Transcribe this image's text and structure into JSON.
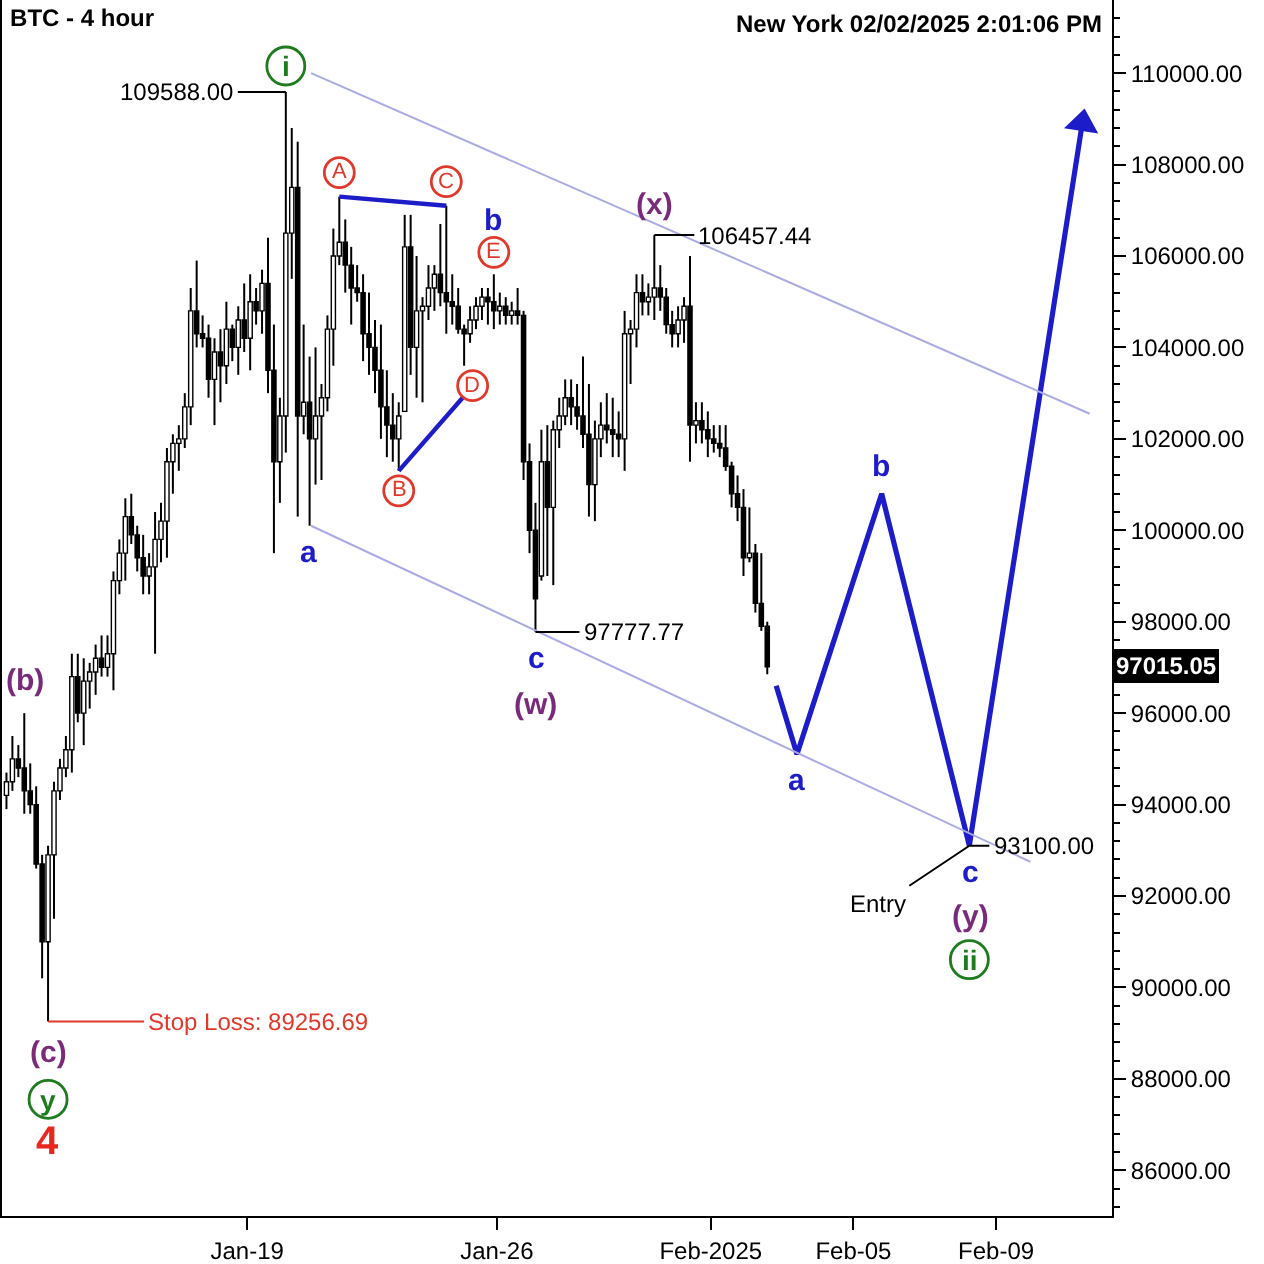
{
  "chart_data": {
    "type": "candlestick",
    "title": "BTC - 4 hour",
    "color": "#000000",
    "x": [
      "2025-01-12T06:00",
      "2025-01-12T10:00",
      "2025-01-12T14:00",
      "2025-01-12T18:00",
      "2025-01-12T22:00",
      "2025-01-13T02:00",
      "2025-01-13T06:00",
      "2025-01-13T10:00",
      "2025-01-13T14:00",
      "2025-01-13T18:00",
      "2025-01-13T22:00",
      "2025-01-14T02:00",
      "2025-01-14T06:00",
      "2025-01-14T10:00",
      "2025-01-14T14:00",
      "2025-01-14T18:00",
      "2025-01-14T22:00",
      "2025-01-15T02:00",
      "2025-01-15T06:00",
      "2025-01-15T10:00",
      "2025-01-15T14:00",
      "2025-01-15T18:00",
      "2025-01-15T22:00",
      "2025-01-16T02:00",
      "2025-01-16T06:00",
      "2025-01-16T10:00",
      "2025-01-16T14:00",
      "2025-01-16T18:00",
      "2025-01-16T22:00",
      "2025-01-17T02:00",
      "2025-01-17T06:00",
      "2025-01-17T10:00",
      "2025-01-17T14:00",
      "2025-01-17T18:00",
      "2025-01-17T22:00",
      "2025-01-18T02:00",
      "2025-01-18T06:00",
      "2025-01-18T10:00",
      "2025-01-18T14:00",
      "2025-01-18T18:00",
      "2025-01-18T22:00",
      "2025-01-19T02:00",
      "2025-01-19T06:00",
      "2025-01-19T10:00",
      "2025-01-19T14:00",
      "2025-01-19T18:00",
      "2025-01-19T22:00",
      "2025-01-20T02:00",
      "2025-01-20T06:00",
      "2025-01-20T10:00",
      "2025-01-20T14:00",
      "2025-01-20T18:00",
      "2025-01-20T22:00",
      "2025-01-21T02:00",
      "2025-01-21T06:00",
      "2025-01-21T10:00",
      "2025-01-21T14:00",
      "2025-01-21T18:00",
      "2025-01-21T22:00",
      "2025-01-22T02:00",
      "2025-01-22T06:00",
      "2025-01-22T10:00",
      "2025-01-22T14:00",
      "2025-01-22T18:00",
      "2025-01-22T22:00",
      "2025-01-23T02:00",
      "2025-01-23T06:00",
      "2025-01-23T10:00",
      "2025-01-23T14:00",
      "2025-01-23T18:00",
      "2025-01-23T22:00",
      "2025-01-24T02:00",
      "2025-01-24T06:00",
      "2025-01-24T10:00",
      "2025-01-24T14:00",
      "2025-01-24T18:00",
      "2025-01-24T22:00",
      "2025-01-25T02:00",
      "2025-01-25T06:00",
      "2025-01-25T10:00",
      "2025-01-25T14:00",
      "2025-01-25T18:00",
      "2025-01-25T22:00",
      "2025-01-26T02:00",
      "2025-01-26T06:00",
      "2025-01-26T10:00",
      "2025-01-26T14:00",
      "2025-01-26T18:00",
      "2025-01-26T22:00",
      "2025-01-27T02:00",
      "2025-01-27T06:00",
      "2025-01-27T10:00",
      "2025-01-27T14:00",
      "2025-01-27T18:00",
      "2025-01-27T22:00",
      "2025-01-28T02:00",
      "2025-01-28T06:00",
      "2025-01-28T10:00",
      "2025-01-28T14:00",
      "2025-01-28T18:00",
      "2025-01-28T22:00",
      "2025-01-29T02:00",
      "2025-01-29T06:00",
      "2025-01-29T10:00",
      "2025-01-29T14:00",
      "2025-01-29T18:00",
      "2025-01-29T22:00",
      "2025-01-30T02:00",
      "2025-01-30T06:00",
      "2025-01-30T10:00",
      "2025-01-30T14:00",
      "2025-01-30T18:00",
      "2025-01-30T22:00",
      "2025-01-31T02:00",
      "2025-01-31T06:00",
      "2025-01-31T10:00",
      "2025-01-31T14:00",
      "2025-01-31T18:00",
      "2025-01-31T22:00",
      "2025-02-01T02:00",
      "2025-02-01T06:00",
      "2025-02-01T10:00",
      "2025-02-01T14:00",
      "2025-02-01T18:00",
      "2025-02-01T22:00",
      "2025-02-02T02:00",
      "2025-02-02T06:00",
      "2025-02-02T10:00",
      "2025-02-02T14:00"
    ],
    "ohlc": [
      [
        94200,
        94700,
        93900,
        94500
      ],
      [
        94500,
        95500,
        94300,
        95000
      ],
      [
        95000,
        95300,
        94600,
        94800
      ],
      [
        94800,
        96000,
        93800,
        94300
      ],
      [
        94300,
        94900,
        93800,
        94000
      ],
      [
        94000,
        94400,
        92600,
        92700
      ],
      [
        92700,
        92900,
        90200,
        91000
      ],
      [
        91000,
        93100,
        89256.69,
        92900
      ],
      [
        92900,
        94500,
        91500,
        94300
      ],
      [
        94300,
        95000,
        94100,
        94800
      ],
      [
        94800,
        95500,
        94600,
        95200
      ],
      [
        95200,
        97300,
        94700,
        96800
      ],
      [
        96800,
        97300,
        95800,
        96000
      ],
      [
        96000,
        97200,
        95300,
        96700
      ],
      [
        96700,
        97100,
        96100,
        96900
      ],
      [
        96900,
        97500,
        96400,
        97200
      ],
      [
        97200,
        97700,
        96800,
        97000
      ],
      [
        97000,
        97700,
        96800,
        97300
      ],
      [
        97300,
        99100,
        96500,
        98900
      ],
      [
        98900,
        99800,
        98600,
        99500
      ],
      [
        99500,
        100700,
        98900,
        100300
      ],
      [
        100300,
        100800,
        99700,
        99900
      ],
      [
        99900,
        100100,
        99100,
        99400
      ],
      [
        99400,
        99900,
        98600,
        99000
      ],
      [
        99000,
        99500,
        98600,
        99200
      ],
      [
        99200,
        100400,
        97300,
        99800
      ],
      [
        99800,
        100600,
        99300,
        100200
      ],
      [
        100200,
        101800,
        99400,
        101500
      ],
      [
        101500,
        102100,
        100800,
        101900
      ],
      [
        101900,
        102300,
        101300,
        102000
      ],
      [
        102000,
        103000,
        101800,
        102700
      ],
      [
        102700,
        105300,
        102300,
        104800
      ],
      [
        104800,
        105900,
        104000,
        104300
      ],
      [
        104300,
        104700,
        104000,
        104200
      ],
      [
        104200,
        104500,
        102900,
        103300
      ],
      [
        103300,
        104200,
        102300,
        103900
      ],
      [
        103900,
        104400,
        102800,
        103600
      ],
      [
        103600,
        105000,
        103200,
        104400
      ],
      [
        104400,
        104500,
        103700,
        104000
      ],
      [
        104000,
        104900,
        103400,
        104600
      ],
      [
        104600,
        105400,
        103900,
        104200
      ],
      [
        104200,
        105600,
        103500,
        105000
      ],
      [
        105000,
        105300,
        104500,
        104800
      ],
      [
        104800,
        105700,
        104300,
        105400
      ],
      [
        105400,
        106400,
        103000,
        103500
      ],
      [
        103500,
        104500,
        99500,
        101500
      ],
      [
        101500,
        102900,
        100600,
        102500
      ],
      [
        102500,
        109588,
        101700,
        106500
      ],
      [
        106500,
        108800,
        105500,
        107500
      ],
      [
        107500,
        108500,
        100300,
        102500
      ],
      [
        102500,
        104500,
        102100,
        102800
      ],
      [
        102800,
        103800,
        100100,
        102000
      ],
      [
        102000,
        104000,
        101000,
        102500
      ],
      [
        102500,
        103200,
        101100,
        102900
      ],
      [
        102900,
        104700,
        102600,
        104400
      ],
      [
        104400,
        106600,
        103600,
        106000
      ],
      [
        106000,
        107300,
        105800,
        106300
      ],
      [
        106300,
        106800,
        105200,
        105800
      ],
      [
        105800,
        106200,
        104500,
        105300
      ],
      [
        105300,
        105800,
        105000,
        105200
      ],
      [
        105200,
        105600,
        103700,
        104300
      ],
      [
        104300,
        105200,
        103400,
        104000
      ],
      [
        104000,
        104600,
        103000,
        103500
      ],
      [
        103500,
        104500,
        102000,
        102700
      ],
      [
        102700,
        103500,
        101600,
        102300
      ],
      [
        102300,
        103000,
        101500,
        102000
      ],
      [
        102000,
        102800,
        101300,
        102500
      ],
      [
        102600,
        106900,
        102600,
        106200
      ],
      [
        106200,
        106900,
        103400,
        104000
      ],
      [
        104000,
        106000,
        102900,
        104800
      ],
      [
        104800,
        105100,
        102800,
        104900
      ],
      [
        104900,
        105800,
        104600,
        105300
      ],
      [
        105300,
        105800,
        104800,
        105600
      ],
      [
        105600,
        106700,
        104900,
        105200
      ],
      [
        105200,
        107100,
        104300,
        105000
      ],
      [
        105000,
        105600,
        104500,
        104900
      ],
      [
        104900,
        105300,
        104300,
        104400
      ],
      [
        104400,
        104500,
        103600,
        104300
      ],
      [
        104300,
        104900,
        104100,
        104600
      ],
      [
        104600,
        105100,
        104400,
        104900
      ],
      [
        104900,
        105300,
        104600,
        105100
      ],
      [
        105100,
        105300,
        104500,
        105000
      ],
      [
        105000,
        105600,
        104400,
        104800
      ],
      [
        104800,
        105200,
        104500,
        104900
      ],
      [
        104900,
        105100,
        104500,
        104700
      ],
      [
        104700,
        105000,
        104500,
        104800
      ],
      [
        104800,
        105300,
        104500,
        104700
      ],
      [
        104700,
        104800,
        101100,
        101500
      ],
      [
        101500,
        101900,
        99500,
        100000
      ],
      [
        100000,
        100600,
        97777.77,
        98500
      ],
      [
        99000,
        102200,
        98900,
        101500
      ],
      [
        101500,
        102300,
        99000,
        100500
      ],
      [
        100500,
        102400,
        98800,
        102200
      ],
      [
        102200,
        102900,
        101800,
        102500
      ],
      [
        102500,
        103300,
        102300,
        102900
      ],
      [
        102900,
        103300,
        102300,
        102700
      ],
      [
        102700,
        103200,
        102200,
        102500
      ],
      [
        102500,
        103800,
        101800,
        102100
      ],
      [
        102100,
        103200,
        100300,
        101000
      ],
      [
        101000,
        102400,
        100200,
        102000
      ],
      [
        102000,
        102800,
        101600,
        102300
      ],
      [
        102300,
        103000,
        101900,
        102200
      ],
      [
        102200,
        102900,
        101600,
        102100
      ],
      [
        102100,
        102600,
        101600,
        102000
      ],
      [
        102000,
        104800,
        101300,
        104300
      ],
      [
        104300,
        104600,
        103200,
        104400
      ],
      [
        104400,
        105600,
        104000,
        105200
      ],
      [
        105200,
        105600,
        104700,
        105000
      ],
      [
        105000,
        105400,
        104700,
        105100
      ],
      [
        105100,
        106457.44,
        104600,
        105300
      ],
      [
        105300,
        105800,
        104800,
        105100
      ],
      [
        105100,
        105300,
        104300,
        104500
      ],
      [
        104500,
        104800,
        104000,
        104300
      ],
      [
        104300,
        104900,
        104000,
        104600
      ],
      [
        104600,
        105100,
        104100,
        104900
      ],
      [
        104900,
        106000,
        101500,
        102300
      ],
      [
        102300,
        102800,
        101900,
        102400
      ],
      [
        102400,
        102800,
        101900,
        102200
      ],
      [
        102200,
        102600,
        101600,
        102000
      ],
      [
        102000,
        102300,
        101700,
        101900
      ],
      [
        101900,
        102300,
        101600,
        101800
      ],
      [
        101800,
        102300,
        101300,
        101400
      ],
      [
        101400,
        101500,
        100500,
        100800
      ],
      [
        100800,
        101200,
        100200,
        100500
      ],
      [
        100500,
        100900,
        99000,
        99400
      ],
      [
        99400,
        100500,
        99300,
        99500
      ],
      [
        99500,
        99700,
        98200,
        98400
      ],
      [
        98400,
        99500,
        97800,
        97900
      ],
      [
        97900,
        98000,
        96850,
        97015.05
      ]
    ],
    "series": [
      {
        "type": "line",
        "color": "#1c1cc8",
        "x": [
          "2025-02-02T20:00",
          "2025-02-03T10:00",
          "2025-02-05T19:00",
          "2025-02-08T06:00",
          "2025-02-11T10:00"
        ],
        "values": [
          96600,
          95100,
          100800,
          93100,
          108900
        ]
      },
      {
        "type": "line",
        "color": "#1c1cc8",
        "x": [
          "2025-01-21T14:00",
          "2025-01-24T14:00"
        ],
        "values": [
          107300,
          107100
        ]
      },
      {
        "type": "line",
        "color": "#1c1cc8",
        "x": [
          "2025-01-23T06:00",
          "2025-01-25T01:00"
        ],
        "values": [
          101300,
          102900
        ]
      },
      {
        "type": "line",
        "color": "#aaaae6",
        "x": [
          "2025-01-20T19:00",
          "2025-02-11T15:00"
        ],
        "values": [
          110000,
          102550
        ]
      },
      {
        "type": "line",
        "color": "#aaaae6",
        "x": [
          "2025-01-20T19:00",
          "2025-02-09T23:00"
        ],
        "values": [
          100100,
          92750
        ]
      }
    ],
    "xlim": [
      "2025-01-12T03:00",
      "2025-02-12T06:00"
    ],
    "xticks": [
      {
        "value": "2025-01-19",
        "label": "Jan-19"
      },
      {
        "value": "2025-01-26",
        "label": "Jan-26"
      },
      {
        "value": "2025-02-01",
        "label": "Feb-2025"
      },
      {
        "value": "2025-02-05",
        "label": "Feb-05"
      },
      {
        "value": "2025-02-09",
        "label": "Feb-09"
      }
    ],
    "ylim": [
      85000,
      111600
    ],
    "yticks": [
      {
        "value": 85200,
        "label": null
      },
      {
        "value": 85600,
        "label": null
      },
      {
        "value": 86000,
        "label": "86000.00"
      },
      {
        "value": 86400,
        "label": null
      },
      {
        "value": 86800,
        "label": null
      },
      {
        "value": 87200,
        "label": null
      },
      {
        "value": 87600,
        "label": null
      },
      {
        "value": 88000,
        "label": "88000.00"
      },
      {
        "value": 88400,
        "label": null
      },
      {
        "value": 88800,
        "label": null
      },
      {
        "value": 89200,
        "label": null
      },
      {
        "value": 89600,
        "label": null
      },
      {
        "value": 90000,
        "label": "90000.00"
      },
      {
        "value": 90400,
        "label": null
      },
      {
        "value": 90800,
        "label": null
      },
      {
        "value": 91200,
        "label": null
      },
      {
        "value": 91600,
        "label": null
      },
      {
        "value": 92000,
        "label": "92000.00"
      },
      {
        "value": 92400,
        "label": null
      },
      {
        "value": 92800,
        "label": null
      },
      {
        "value": 93200,
        "label": null
      },
      {
        "value": 93600,
        "label": null
      },
      {
        "value": 94000,
        "label": "94000.00"
      },
      {
        "value": 94400,
        "label": null
      },
      {
        "value": 94800,
        "label": null
      },
      {
        "value": 95200,
        "label": null
      },
      {
        "value": 95600,
        "label": null
      },
      {
        "value": 96000,
        "label": "96000.00"
      },
      {
        "value": 96400,
        "label": null
      },
      {
        "value": 96800,
        "label": null
      },
      {
        "value": 97200,
        "label": null
      },
      {
        "value": 97600,
        "label": null
      },
      {
        "value": 98000,
        "label": "98000.00"
      },
      {
        "value": 98400,
        "label": null
      },
      {
        "value": 98800,
        "label": null
      },
      {
        "value": 99200,
        "label": null
      },
      {
        "value": 99600,
        "label": null
      },
      {
        "value": 100000,
        "label": "100000.00"
      },
      {
        "value": 100400,
        "label": null
      },
      {
        "value": 100800,
        "label": null
      },
      {
        "value": 101200,
        "label": null
      },
      {
        "value": 101600,
        "label": null
      },
      {
        "value": 102000,
        "label": "102000.00"
      },
      {
        "value": 102400,
        "label": null
      },
      {
        "value": 102800,
        "label": null
      },
      {
        "value": 103200,
        "label": null
      },
      {
        "value": 103600,
        "label": null
      },
      {
        "value": 104000,
        "label": "104000.00"
      },
      {
        "value": 104400,
        "label": null
      },
      {
        "value": 104800,
        "label": null
      },
      {
        "value": 105200,
        "label": null
      },
      {
        "value": 105600,
        "label": null
      },
      {
        "value": 106000,
        "label": "106000.00"
      },
      {
        "value": 106400,
        "label": null
      },
      {
        "value": 106800,
        "label": null
      },
      {
        "value": 107200,
        "label": null
      },
      {
        "value": 107600,
        "label": null
      },
      {
        "value": 108000,
        "label": "108000.00"
      },
      {
        "value": 108400,
        "label": null
      },
      {
        "value": 108800,
        "label": null
      },
      {
        "value": 109200,
        "label": null
      },
      {
        "value": 109600,
        "label": null
      },
      {
        "value": 110000,
        "label": "110000.00"
      },
      {
        "value": 110400,
        "label": null
      },
      {
        "value": 110800,
        "label": null
      },
      {
        "value": 111200,
        "label": null
      }
    ],
    "annotations": [
      "New York 02/02/2025 2:01:06 PM",
      {
        "text": "i",
        "x": "2025-01-20T02:00",
        "y": 109588
      },
      {
        "text": "109588.00",
        "x": "2025-01-20T02:00",
        "y": 109588
      },
      {
        "text": "A",
        "x": "2025-01-21T14:00",
        "y": 107300
      },
      {
        "text": "C",
        "x": "2025-01-24T14:00",
        "y": 107100
      },
      {
        "text": "b",
        "x": "2025-01-25T22:00",
        "y": 105600
      },
      {
        "text": "E",
        "x": "2025-01-25T22:00",
        "y": 105600
      },
      {
        "text": "D",
        "x": "2025-01-25T01:00",
        "y": 102900
      },
      {
        "text": "B",
        "x": "2025-01-23T06:00",
        "y": 101300
      },
      {
        "text": "a",
        "x": "2025-01-20T18:00",
        "y": 100100
      },
      {
        "text": "(x)",
        "x": "2025-01-30T10:00",
        "y": 106457.44
      },
      {
        "text": "106457.44",
        "x": "2025-01-30T10:00",
        "y": 106457.44
      },
      {
        "text": "97777.77",
        "x": "2025-01-27T02:00",
        "y": 97777.77
      },
      {
        "text": "c",
        "x": "2025-01-27T02:00",
        "y": 97777.77
      },
      {
        "text": "(w)",
        "x": "2025-01-27T02:00",
        "y": 97777.77
      },
      {
        "text": "a",
        "x": "2025-02-03T10:00",
        "y": 95100
      },
      {
        "text": "b",
        "x": "2025-02-05T19:00",
        "y": 100800
      },
      {
        "text": "c",
        "x": "2025-02-08T06:00",
        "y": 93100
      },
      {
        "text": "93100.00",
        "x": "2025-02-08T06:00",
        "y": 93100
      },
      {
        "text": "Entry",
        "x": "2025-02-08T06:00",
        "y": 93100
      },
      {
        "text": "(y)",
        "x": "2025-02-08T06:00",
        "y": 93100
      },
      "ii",
      {
        "text": "(b)",
        "x": "2025-01-12T18:00",
        "y": 96000
      },
      {
        "text": "(c)",
        "x": "2025-01-13T10:00",
        "y": 89256.69
      },
      {
        "text": "y",
        "x": "2025-01-13T10:00",
        "y": 89256.69
      },
      {
        "text": "4",
        "x": "2025-01-13T10:00",
        "y": 89256.69
      },
      {
        "text": "Stop Loss: 89256.69",
        "x": "2025-01-13T10:00",
        "y": 89256.69
      },
      "97015.05"
    ]
  }
}
